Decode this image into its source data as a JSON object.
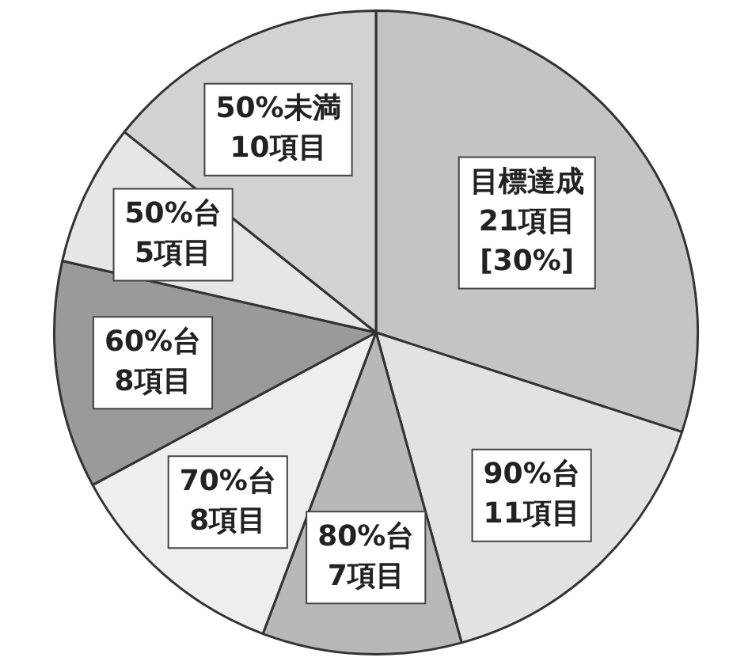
{
  "chart_data": {
    "type": "pie",
    "categories": [
      "目標達成",
      "90%台",
      "80%台",
      "70%台",
      "60%台",
      "50%台",
      "50%未満"
    ],
    "values": [
      21,
      11,
      7,
      8,
      8,
      5,
      10
    ],
    "value_labels": [
      "21項目\n[30%]",
      "11項目",
      "7項目",
      "8項目",
      "8項目",
      "5項目",
      "10項目"
    ],
    "colors": [
      "#c4c4c4",
      "#e2e2e2",
      "#b8b8b8",
      "#eeeeee",
      "#9a9a9a",
      "#e6e6e6",
      "#d2d2d2"
    ],
    "legend": false
  }
}
